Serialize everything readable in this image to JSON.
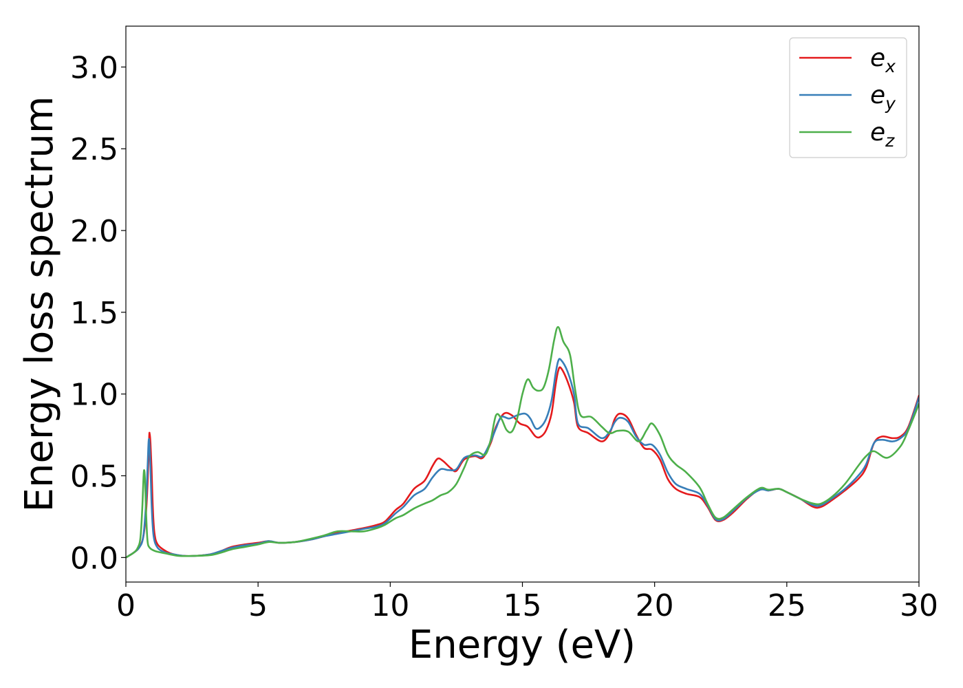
{
  "chart_data": {
    "type": "line",
    "title": "",
    "xlabel": "Energy (eV)",
    "ylabel": "Energy loss spectrum",
    "xlim": [
      0,
      30
    ],
    "ylim": [
      -0.15,
      3.25
    ],
    "xticks": [
      0,
      5,
      10,
      15,
      20,
      25,
      30
    ],
    "yticks": [
      0.0,
      0.5,
      1.0,
      1.5,
      2.0,
      2.5,
      3.0
    ],
    "xtick_labels": [
      "0",
      "5",
      "10",
      "15",
      "20",
      "25",
      "30"
    ],
    "ytick_labels": [
      "0.0",
      "0.5",
      "1.0",
      "1.5",
      "2.0",
      "2.5",
      "3.0"
    ],
    "grid": false,
    "legend_position": "top-right",
    "series": [
      {
        "name": "e",
        "subscript": "x",
        "color": "#e41a1c",
        "points": [
          [
            0,
            0
          ],
          [
            0.3,
            0.03
          ],
          [
            0.5,
            0.06
          ],
          [
            0.65,
            0.12
          ],
          [
            0.75,
            0.25
          ],
          [
            0.82,
            0.45
          ],
          [
            0.88,
            0.73
          ],
          [
            0.9,
            0.755
          ],
          [
            0.93,
            0.7
          ],
          [
            0.97,
            0.55
          ],
          [
            1.02,
            0.3
          ],
          [
            1.08,
            0.15
          ],
          [
            1.2,
            0.08
          ],
          [
            1.5,
            0.04
          ],
          [
            1.8,
            0.02
          ],
          [
            2.2,
            0.01
          ],
          [
            2.6,
            0.01
          ],
          [
            3.2,
            0.02
          ],
          [
            3.6,
            0.04
          ],
          [
            4.0,
            0.065
          ],
          [
            4.5,
            0.08
          ],
          [
            5.0,
            0.09
          ],
          [
            5.4,
            0.1
          ],
          [
            5.8,
            0.09
          ],
          [
            6.4,
            0.095
          ],
          [
            7.0,
            0.11
          ],
          [
            7.5,
            0.13
          ],
          [
            8.0,
            0.15
          ],
          [
            8.5,
            0.165
          ],
          [
            9.0,
            0.18
          ],
          [
            9.5,
            0.2
          ],
          [
            9.8,
            0.22
          ],
          [
            10.2,
            0.29
          ],
          [
            10.5,
            0.33
          ],
          [
            10.9,
            0.42
          ],
          [
            11.3,
            0.47
          ],
          [
            11.6,
            0.56
          ],
          [
            11.8,
            0.605
          ],
          [
            12.0,
            0.59
          ],
          [
            12.3,
            0.545
          ],
          [
            12.5,
            0.53
          ],
          [
            12.8,
            0.6
          ],
          [
            13.2,
            0.62
          ],
          [
            13.5,
            0.61
          ],
          [
            13.8,
            0.7
          ],
          [
            14.0,
            0.8
          ],
          [
            14.3,
            0.88
          ],
          [
            14.6,
            0.87
          ],
          [
            14.9,
            0.82
          ],
          [
            15.2,
            0.8
          ],
          [
            15.5,
            0.74
          ],
          [
            15.7,
            0.74
          ],
          [
            15.9,
            0.78
          ],
          [
            16.1,
            0.88
          ],
          [
            16.25,
            1.05
          ],
          [
            16.35,
            1.14
          ],
          [
            16.45,
            1.16
          ],
          [
            16.7,
            1.08
          ],
          [
            16.95,
            0.95
          ],
          [
            17.1,
            0.8
          ],
          [
            17.5,
            0.76
          ],
          [
            18.0,
            0.71
          ],
          [
            18.3,
            0.76
          ],
          [
            18.5,
            0.85
          ],
          [
            18.7,
            0.88
          ],
          [
            19.0,
            0.85
          ],
          [
            19.3,
            0.75
          ],
          [
            19.6,
            0.67
          ],
          [
            19.9,
            0.66
          ],
          [
            20.2,
            0.6
          ],
          [
            20.5,
            0.48
          ],
          [
            20.8,
            0.42
          ],
          [
            21.2,
            0.39
          ],
          [
            21.7,
            0.37
          ],
          [
            22.0,
            0.31
          ],
          [
            22.3,
            0.23
          ],
          [
            22.6,
            0.23
          ],
          [
            23.0,
            0.28
          ],
          [
            23.5,
            0.36
          ],
          [
            24.0,
            0.42
          ],
          [
            24.3,
            0.41
          ],
          [
            24.7,
            0.42
          ],
          [
            25.0,
            0.4
          ],
          [
            25.5,
            0.36
          ],
          [
            26.0,
            0.31
          ],
          [
            26.3,
            0.31
          ],
          [
            26.7,
            0.35
          ],
          [
            27.2,
            0.41
          ],
          [
            27.7,
            0.48
          ],
          [
            28.0,
            0.55
          ],
          [
            28.3,
            0.7
          ],
          [
            28.6,
            0.74
          ],
          [
            29.0,
            0.73
          ],
          [
            29.3,
            0.74
          ],
          [
            29.6,
            0.8
          ],
          [
            30.0,
            0.99
          ]
        ]
      },
      {
        "name": "e",
        "subscript": "y",
        "color": "#377eb8",
        "points": [
          [
            0,
            0
          ],
          [
            0.3,
            0.03
          ],
          [
            0.5,
            0.06
          ],
          [
            0.65,
            0.12
          ],
          [
            0.75,
            0.3
          ],
          [
            0.82,
            0.55
          ],
          [
            0.86,
            0.71
          ],
          [
            0.89,
            0.7
          ],
          [
            0.93,
            0.55
          ],
          [
            0.98,
            0.3
          ],
          [
            1.05,
            0.13
          ],
          [
            1.2,
            0.06
          ],
          [
            1.5,
            0.03
          ],
          [
            1.8,
            0.02
          ],
          [
            2.2,
            0.01
          ],
          [
            2.6,
            0.01
          ],
          [
            3.2,
            0.02
          ],
          [
            3.6,
            0.04
          ],
          [
            4.0,
            0.06
          ],
          [
            4.5,
            0.075
          ],
          [
            5.0,
            0.085
          ],
          [
            5.4,
            0.1
          ],
          [
            5.8,
            0.09
          ],
          [
            6.4,
            0.095
          ],
          [
            7.0,
            0.11
          ],
          [
            7.5,
            0.13
          ],
          [
            8.0,
            0.145
          ],
          [
            8.5,
            0.16
          ],
          [
            9.0,
            0.175
          ],
          [
            9.5,
            0.19
          ],
          [
            9.8,
            0.21
          ],
          [
            10.2,
            0.27
          ],
          [
            10.5,
            0.31
          ],
          [
            10.9,
            0.38
          ],
          [
            11.3,
            0.42
          ],
          [
            11.6,
            0.49
          ],
          [
            11.9,
            0.54
          ],
          [
            12.2,
            0.535
          ],
          [
            12.5,
            0.54
          ],
          [
            12.8,
            0.61
          ],
          [
            13.2,
            0.625
          ],
          [
            13.5,
            0.62
          ],
          [
            13.8,
            0.71
          ],
          [
            14.0,
            0.79
          ],
          [
            14.2,
            0.86
          ],
          [
            14.5,
            0.85
          ],
          [
            14.8,
            0.87
          ],
          [
            15.1,
            0.88
          ],
          [
            15.3,
            0.85
          ],
          [
            15.5,
            0.79
          ],
          [
            15.7,
            0.8
          ],
          [
            15.9,
            0.85
          ],
          [
            16.1,
            0.96
          ],
          [
            16.25,
            1.12
          ],
          [
            16.35,
            1.2
          ],
          [
            16.45,
            1.21
          ],
          [
            16.7,
            1.14
          ],
          [
            16.95,
            1.0
          ],
          [
            17.1,
            0.82
          ],
          [
            17.5,
            0.79
          ],
          [
            18.0,
            0.73
          ],
          [
            18.3,
            0.77
          ],
          [
            18.5,
            0.83
          ],
          [
            18.7,
            0.855
          ],
          [
            19.0,
            0.83
          ],
          [
            19.3,
            0.74
          ],
          [
            19.6,
            0.69
          ],
          [
            19.9,
            0.69
          ],
          [
            20.2,
            0.63
          ],
          [
            20.5,
            0.52
          ],
          [
            20.8,
            0.45
          ],
          [
            21.2,
            0.42
          ],
          [
            21.7,
            0.39
          ],
          [
            22.0,
            0.32
          ],
          [
            22.3,
            0.235
          ],
          [
            22.6,
            0.235
          ],
          [
            23.0,
            0.29
          ],
          [
            23.5,
            0.365
          ],
          [
            24.0,
            0.415
          ],
          [
            24.3,
            0.41
          ],
          [
            24.7,
            0.42
          ],
          [
            25.0,
            0.4
          ],
          [
            25.5,
            0.36
          ],
          [
            26.0,
            0.32
          ],
          [
            26.3,
            0.32
          ],
          [
            26.7,
            0.36
          ],
          [
            27.2,
            0.42
          ],
          [
            27.7,
            0.5
          ],
          [
            28.0,
            0.57
          ],
          [
            28.3,
            0.7
          ],
          [
            28.6,
            0.72
          ],
          [
            29.0,
            0.71
          ],
          [
            29.3,
            0.73
          ],
          [
            29.6,
            0.79
          ],
          [
            30.0,
            0.98
          ]
        ]
      },
      {
        "name": "e",
        "subscript": "z",
        "color": "#4daf4a",
        "points": [
          [
            0,
            0
          ],
          [
            0.3,
            0.03
          ],
          [
            0.45,
            0.06
          ],
          [
            0.55,
            0.12
          ],
          [
            0.62,
            0.3
          ],
          [
            0.67,
            0.5
          ],
          [
            0.7,
            0.53
          ],
          [
            0.73,
            0.45
          ],
          [
            0.77,
            0.25
          ],
          [
            0.82,
            0.1
          ],
          [
            0.9,
            0.06
          ],
          [
            1.1,
            0.04
          ],
          [
            1.5,
            0.025
          ],
          [
            2.0,
            0.01
          ],
          [
            2.6,
            0.01
          ],
          [
            3.2,
            0.015
          ],
          [
            3.6,
            0.03
          ],
          [
            4.0,
            0.05
          ],
          [
            4.5,
            0.065
          ],
          [
            5.0,
            0.08
          ],
          [
            5.4,
            0.095
          ],
          [
            5.8,
            0.09
          ],
          [
            6.4,
            0.095
          ],
          [
            7.0,
            0.115
          ],
          [
            7.5,
            0.135
          ],
          [
            8.0,
            0.16
          ],
          [
            8.5,
            0.16
          ],
          [
            9.0,
            0.16
          ],
          [
            9.5,
            0.18
          ],
          [
            9.8,
            0.2
          ],
          [
            10.2,
            0.24
          ],
          [
            10.5,
            0.26
          ],
          [
            10.9,
            0.3
          ],
          [
            11.3,
            0.33
          ],
          [
            11.6,
            0.35
          ],
          [
            11.9,
            0.38
          ],
          [
            12.2,
            0.4
          ],
          [
            12.5,
            0.45
          ],
          [
            12.8,
            0.55
          ],
          [
            13.0,
            0.62
          ],
          [
            13.3,
            0.645
          ],
          [
            13.6,
            0.63
          ],
          [
            13.8,
            0.72
          ],
          [
            14.0,
            0.87
          ],
          [
            14.2,
            0.85
          ],
          [
            14.4,
            0.78
          ],
          [
            14.6,
            0.77
          ],
          [
            14.8,
            0.85
          ],
          [
            15.0,
            1.0
          ],
          [
            15.2,
            1.09
          ],
          [
            15.4,
            1.04
          ],
          [
            15.6,
            1.02
          ],
          [
            15.8,
            1.04
          ],
          [
            16.0,
            1.15
          ],
          [
            16.2,
            1.33
          ],
          [
            16.35,
            1.41
          ],
          [
            16.55,
            1.32
          ],
          [
            16.8,
            1.24
          ],
          [
            17.0,
            1.02
          ],
          [
            17.2,
            0.87
          ],
          [
            17.6,
            0.86
          ],
          [
            18.0,
            0.8
          ],
          [
            18.3,
            0.76
          ],
          [
            18.6,
            0.775
          ],
          [
            19.0,
            0.77
          ],
          [
            19.4,
            0.71
          ],
          [
            19.7,
            0.78
          ],
          [
            19.9,
            0.82
          ],
          [
            20.2,
            0.75
          ],
          [
            20.5,
            0.63
          ],
          [
            20.8,
            0.57
          ],
          [
            21.2,
            0.52
          ],
          [
            21.7,
            0.43
          ],
          [
            22.0,
            0.33
          ],
          [
            22.3,
            0.245
          ],
          [
            22.6,
            0.245
          ],
          [
            23.0,
            0.3
          ],
          [
            23.5,
            0.37
          ],
          [
            24.0,
            0.425
          ],
          [
            24.3,
            0.415
          ],
          [
            24.7,
            0.42
          ],
          [
            25.0,
            0.4
          ],
          [
            25.5,
            0.36
          ],
          [
            26.0,
            0.33
          ],
          [
            26.3,
            0.33
          ],
          [
            26.7,
            0.37
          ],
          [
            27.2,
            0.45
          ],
          [
            27.7,
            0.56
          ],
          [
            28.0,
            0.62
          ],
          [
            28.3,
            0.65
          ],
          [
            28.8,
            0.61
          ],
          [
            29.3,
            0.68
          ],
          [
            29.6,
            0.78
          ],
          [
            30.0,
            0.94
          ]
        ]
      }
    ]
  }
}
